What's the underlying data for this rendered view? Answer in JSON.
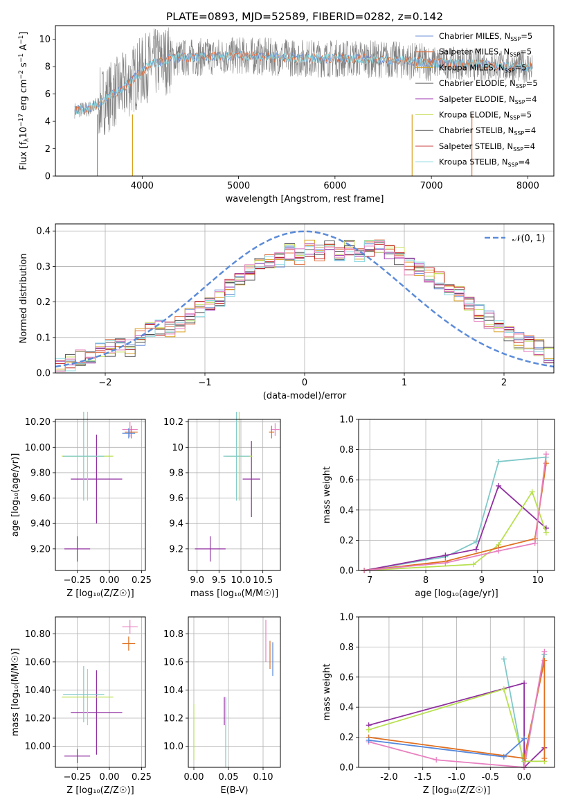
{
  "title": "PLATE=0893, MJD=52589, FIBERID=0282, z=0.142",
  "colors": {
    "Chabrier MILES": "#6c8fd8",
    "Salpeter MILES": "#e07040",
    "Kroupa MILES": "#d9a020",
    "Chabrier ELODIE": "#606060",
    "Salpeter ELODIE": "#9b30b0",
    "Kroupa ELODIE": "#c8e060",
    "Chabrier STELIB": "#505050",
    "Salpeter STELIB": "#c02020",
    "Kroupa STELIB": "#88d8e0",
    "pink": "#e880c0",
    "blue": "#5588dd",
    "orange": "#e07020",
    "purple": "#9030a0",
    "green": "#b8e050",
    "teal": "#80c8c8",
    "gaussian": "#5b8bd9"
  },
  "legend_spectrum": [
    {
      "model": "Chabrier MILES",
      "nssp": "5"
    },
    {
      "model": "Salpeter MILES",
      "nssp": "5"
    },
    {
      "model": "Kroupa MILES",
      "nssp": "5"
    },
    {
      "model": "Chabrier ELODIE",
      "nssp": "5"
    },
    {
      "model": "Salpeter ELODIE",
      "nssp": "4"
    },
    {
      "model": "Kroupa ELODIE",
      "nssp": "5"
    },
    {
      "model": "Chabrier STELIB",
      "nssp": "4"
    },
    {
      "model": "Salpeter STELIB",
      "nssp": "4"
    },
    {
      "model": "Kroupa STELIB",
      "nssp": "4"
    }
  ],
  "chart_data": [
    {
      "type": "line",
      "id": "spectrum",
      "xlabel": "wavelength [Angstrom, rest frame]",
      "ylabel_parts": [
        "Flux [f",
        "λ",
        "10",
        "−17",
        " erg cm",
        "−2",
        " s",
        "−1",
        " A",
        "−1",
        "]"
      ],
      "xlim": [
        3100,
        8270
      ],
      "ylim": [
        0,
        11
      ],
      "xticks": [
        4000,
        5000,
        6000,
        7000,
        8000
      ],
      "yticks": [
        0,
        2,
        4,
        6,
        8,
        10
      ],
      "data_curve": {
        "x": [
          3300,
          3450,
          3550,
          3700,
          3850,
          3950,
          4100,
          4300,
          4600,
          5000,
          5400,
          5800,
          6200,
          6600,
          7000,
          7400,
          7800,
          8050
        ],
        "y": [
          4.8,
          4.9,
          5.3,
          6.0,
          6.7,
          7.4,
          8.2,
          8.6,
          8.7,
          8.8,
          8.7,
          8.6,
          8.6,
          8.5,
          8.3,
          8.2,
          8.0,
          8.0
        ]
      }
    },
    {
      "type": "bar",
      "id": "residuals",
      "xlabel": "(data-model)/error",
      "ylabel": "Normed distribution",
      "xlim": [
        -2.5,
        2.5
      ],
      "ylim": [
        0,
        0.42
      ],
      "xticks": [
        -2,
        -1,
        0,
        1,
        2
      ],
      "yticks": [
        0.0,
        0.1,
        0.2,
        0.3,
        0.4
      ],
      "legend": "𝒩(0, 1)",
      "bin_edges_start": -2.5,
      "bin_width": 0.1,
      "hist_base": [
        0.02,
        0.03,
        0.04,
        0.05,
        0.06,
        0.07,
        0.08,
        0.07,
        0.1,
        0.12,
        0.13,
        0.12,
        0.14,
        0.16,
        0.18,
        0.2,
        0.21,
        0.24,
        0.27,
        0.28,
        0.3,
        0.31,
        0.32,
        0.34,
        0.33,
        0.35,
        0.34,
        0.36,
        0.34,
        0.35,
        0.33,
        0.35,
        0.36,
        0.34,
        0.33,
        0.3,
        0.29,
        0.28,
        0.26,
        0.24,
        0.22,
        0.2,
        0.17,
        0.15,
        0.13,
        0.11,
        0.09,
        0.08,
        0.07,
        0.05
      ]
    },
    {
      "type": "scatter",
      "id": "age_vs_Z",
      "xlabel": "Z [log₁₀(Z/Z☉)]",
      "ylabel": "age  [log₁₀(age/yr)]",
      "xlim": [
        -0.42,
        0.28
      ],
      "ylim": [
        9.03,
        10.22
      ],
      "xticks": [
        -0.25,
        0.0,
        0.25
      ],
      "yticks": [
        9.2,
        9.4,
        9.6,
        9.8,
        10.0,
        10.2
      ],
      "points": [
        {
          "c": "pink",
          "x": 0.16,
          "y": 10.14,
          "xerr": 0.06,
          "yerr": 0.06
        },
        {
          "c": "orange",
          "x": 0.17,
          "y": 10.12,
          "xerr": 0.05,
          "yerr": 0.05
        },
        {
          "c": "blue",
          "x": 0.15,
          "y": 10.11,
          "xerr": 0.05,
          "yerr": 0.04
        },
        {
          "c": "purple",
          "x": -0.1,
          "y": 9.75,
          "xerr": 0.2,
          "yerr": 0.35
        },
        {
          "c": "green",
          "x": -0.17,
          "y": 9.93,
          "xerr": 0.2,
          "yerr": 0.35
        },
        {
          "c": "teal",
          "x": -0.2,
          "y": 9.93,
          "xerr": 0.16,
          "yerr": 0.35
        },
        {
          "c": "purple",
          "x": -0.25,
          "y": 9.2,
          "xerr": 0.1,
          "yerr": 0.1
        }
      ]
    },
    {
      "type": "scatter",
      "id": "age_vs_mass",
      "xlabel": "mass [log₁₀(M/M☉)]",
      "xlim": [
        8.8,
        10.9
      ],
      "ylim": [
        9.03,
        10.22
      ],
      "xticks": [
        9.0,
        9.5,
        10.0,
        10.5
      ],
      "yticks": [
        9.2,
        9.4,
        9.6,
        9.8,
        10.0,
        10.2
      ],
      "points": [
        {
          "c": "pink",
          "x": 10.78,
          "y": 10.14,
          "xerr": 0.1,
          "yerr": 0.05
        },
        {
          "c": "orange",
          "x": 10.7,
          "y": 10.12,
          "xerr": 0.06,
          "yerr": 0.05
        },
        {
          "c": "purple",
          "x": 10.24,
          "y": 9.75,
          "xerr": 0.2,
          "yerr": 0.3
        },
        {
          "c": "green",
          "x": 9.96,
          "y": 9.93,
          "xerr": 0.3,
          "yerr": 0.35
        },
        {
          "c": "teal",
          "x": 9.9,
          "y": 9.93,
          "xerr": 0.3,
          "yerr": 0.35
        },
        {
          "c": "purple",
          "x": 9.3,
          "y": 9.2,
          "xerr": 0.35,
          "yerr": 0.1
        }
      ]
    },
    {
      "type": "line",
      "id": "mass_weight_vs_age",
      "xlabel": "age  [log₁₀(age/yr)]",
      "ylabel": "mass weight",
      "xlim": [
        6.8,
        10.3
      ],
      "ylim": [
        0,
        1.0
      ],
      "xticks": [
        7,
        8,
        9,
        10
      ],
      "yticks": [
        0.0,
        0.2,
        0.4,
        0.6,
        0.8,
        1.0
      ],
      "series": [
        {
          "c": "teal",
          "x": [
            6.9,
            8.35,
            8.9,
            9.3,
            10.15
          ],
          "y": [
            0.0,
            0.09,
            0.19,
            0.72,
            0.75
          ]
        },
        {
          "c": "purple",
          "x": [
            6.9,
            8.35,
            8.9,
            9.3,
            10.15
          ],
          "y": [
            0.0,
            0.1,
            0.14,
            0.56,
            0.28
          ]
        },
        {
          "c": "green",
          "x": [
            6.9,
            8.85,
            9.3,
            9.9,
            10.15
          ],
          "y": [
            0.0,
            0.04,
            0.17,
            0.52,
            0.25
          ]
        },
        {
          "c": "orange",
          "x": [
            6.9,
            8.35,
            9.3,
            9.95,
            10.15
          ],
          "y": [
            0.0,
            0.06,
            0.15,
            0.21,
            0.71
          ]
        },
        {
          "c": "pink",
          "x": [
            6.9,
            8.35,
            9.3,
            9.95,
            10.15
          ],
          "y": [
            0.0,
            0.05,
            0.13,
            0.18,
            0.77
          ]
        }
      ]
    },
    {
      "type": "scatter",
      "id": "mass_vs_Z",
      "xlabel": "Z [log₁₀(Z/Z☉)]",
      "ylabel": "mass [log₁₀(M/M☉)]",
      "xlim": [
        -0.42,
        0.28
      ],
      "ylim": [
        9.85,
        10.92
      ],
      "xticks": [
        -0.25,
        0.0,
        0.25
      ],
      "yticks": [
        10.0,
        10.2,
        10.4,
        10.6,
        10.8
      ],
      "points": [
        {
          "c": "pink",
          "x": 0.16,
          "y": 10.85,
          "xerr": 0.06,
          "yerr": 0.05
        },
        {
          "c": "orange",
          "x": 0.15,
          "y": 10.73,
          "xerr": 0.05,
          "yerr": 0.05
        },
        {
          "c": "purple",
          "x": -0.1,
          "y": 10.24,
          "xerr": 0.2,
          "yerr": 0.3
        },
        {
          "c": "green",
          "x": -0.17,
          "y": 10.35,
          "xerr": 0.2,
          "yerr": 0.2
        },
        {
          "c": "teal",
          "x": -0.2,
          "y": 10.37,
          "xerr": 0.16,
          "yerr": 0.2
        },
        {
          "c": "purple",
          "x": -0.25,
          "y": 9.93,
          "xerr": 0.1,
          "yerr": 0.05
        }
      ]
    },
    {
      "type": "scatter",
      "id": "mass_vs_EBV",
      "xlabel": "E(B-V)",
      "xlim": [
        -0.008,
        0.125
      ],
      "ylim": [
        9.85,
        10.92
      ],
      "xticks": [
        0.0,
        0.05,
        0.1
      ],
      "yticks": [
        10.0,
        10.2,
        10.4,
        10.6,
        10.8
      ],
      "points": [
        {
          "c": "pink",
          "x": 0.104,
          "y": 10.75,
          "yerr": 0.15
        },
        {
          "c": "orange",
          "x": 0.11,
          "y": 10.65,
          "yerr": 0.1
        },
        {
          "c": "blue",
          "x": 0.114,
          "y": 10.62,
          "yerr": 0.12
        },
        {
          "c": "purple",
          "x": 0.044,
          "y": 10.25,
          "yerr": 0.1
        },
        {
          "c": "green",
          "x": 0.0,
          "y": 10.1,
          "yerr": 0.2
        },
        {
          "c": "teal",
          "x": 0.046,
          "y": 10.1,
          "yerr": 0.25
        }
      ]
    },
    {
      "type": "line",
      "id": "mass_weight_vs_Z",
      "xlabel": "Z [log₁₀(Z/Z☉)]",
      "ylabel": "mass weight",
      "xlim": [
        -2.45,
        0.45
      ],
      "ylim": [
        0,
        1.0
      ],
      "xticks": [
        -2.0,
        -1.5,
        -1.0,
        -0.5,
        0.0
      ],
      "yticks": [
        0.0,
        0.2,
        0.4,
        0.6,
        0.8,
        1.0
      ],
      "series": [
        {
          "c": "teal",
          "x": [
            -0.3,
            0.0,
            0.3
          ],
          "y": [
            0.72,
            0.0,
            0.75
          ]
        },
        {
          "c": "purple",
          "x": [
            -2.3,
            0.0,
            0.0,
            0.3
          ],
          "y": [
            0.28,
            0.56,
            0.0,
            0.13
          ]
        },
        {
          "c": "green",
          "x": [
            -2.3,
            -0.3,
            0.0,
            0.3
          ],
          "y": [
            0.25,
            0.52,
            0.04,
            0.04
          ]
        },
        {
          "c": "orange",
          "x": [
            -2.3,
            0.0,
            0.3,
            0.3
          ],
          "y": [
            0.2,
            0.06,
            0.71,
            0.06
          ]
        },
        {
          "c": "pink",
          "x": [
            -2.3,
            -1.3,
            0.0,
            0.3
          ],
          "y": [
            0.17,
            0.05,
            0.0,
            0.77
          ]
        },
        {
          "c": "blue",
          "x": [
            -2.3,
            -0.3,
            0.0
          ],
          "y": [
            0.18,
            0.07,
            0.19
          ]
        }
      ]
    }
  ]
}
